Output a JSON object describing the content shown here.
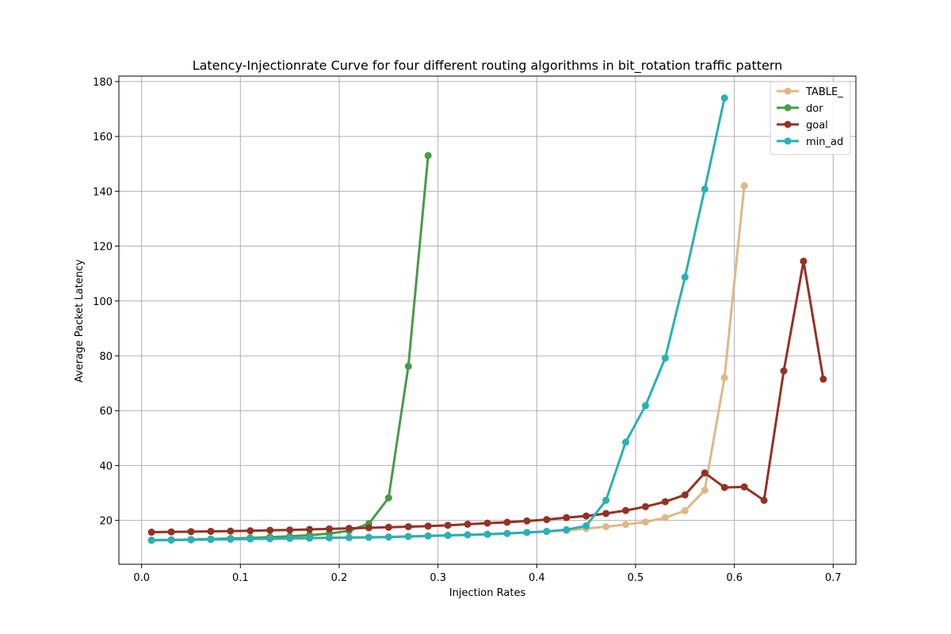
{
  "chart_data": {
    "type": "line",
    "title": "Latency-Injectionrate Curve for four different routing algorithms in bit_rotation traffic pattern",
    "xlabel": "Injection Rates",
    "ylabel": "Average Packet Latency",
    "xlim": [
      -0.023,
      0.723
    ],
    "ylim": [
      4,
      182
    ],
    "xticks": [
      0.0,
      0.1,
      0.2,
      0.3,
      0.4,
      0.5,
      0.6,
      0.7
    ],
    "xtick_labels": [
      "0.0",
      "0.1",
      "0.2",
      "0.3",
      "0.4",
      "0.5",
      "0.6",
      "0.7"
    ],
    "yticks": [
      20,
      40,
      60,
      80,
      100,
      120,
      140,
      160,
      180
    ],
    "ytick_labels": [
      "20",
      "40",
      "60",
      "80",
      "100",
      "120",
      "140",
      "160",
      "180"
    ],
    "grid": true,
    "legend_position": "top-right",
    "series": [
      {
        "name": "TABLE_",
        "color": "#deb887",
        "x": [
          0.01,
          0.03,
          0.05,
          0.07,
          0.09,
          0.11,
          0.13,
          0.15,
          0.17,
          0.19,
          0.21,
          0.23,
          0.25,
          0.27,
          0.29,
          0.31,
          0.33,
          0.35,
          0.37,
          0.39,
          0.41,
          0.43,
          0.45,
          0.47,
          0.49,
          0.51,
          0.53,
          0.55,
          0.57,
          0.59,
          0.61
        ],
        "y": [
          12.8,
          12.9,
          13.0,
          13.1,
          13.2,
          13.3,
          13.4,
          13.5,
          13.6,
          13.7,
          13.8,
          13.9,
          14.0,
          14.2,
          14.4,
          14.6,
          14.8,
          15.0,
          15.3,
          15.6,
          15.9,
          16.3,
          17.0,
          17.7,
          18.5,
          19.4,
          21.0,
          23.5,
          31.0,
          72.0,
          142.0
        ]
      },
      {
        "name": "dor",
        "color": "#4a9a4a",
        "x": [
          0.01,
          0.03,
          0.05,
          0.07,
          0.09,
          0.11,
          0.13,
          0.15,
          0.17,
          0.19,
          0.21,
          0.23,
          0.25,
          0.27,
          0.29
        ],
        "y": [
          12.8,
          12.9,
          13.0,
          13.2,
          13.4,
          13.6,
          13.9,
          14.2,
          14.6,
          15.2,
          16.2,
          18.8,
          28.2,
          76.2,
          153.0
        ]
      },
      {
        "name": "goal",
        "color": "#943126",
        "x": [
          0.01,
          0.03,
          0.05,
          0.07,
          0.09,
          0.11,
          0.13,
          0.15,
          0.17,
          0.19,
          0.21,
          0.23,
          0.25,
          0.27,
          0.29,
          0.31,
          0.33,
          0.35,
          0.37,
          0.39,
          0.41,
          0.43,
          0.45,
          0.47,
          0.49,
          0.51,
          0.53,
          0.55,
          0.57,
          0.59,
          0.61,
          0.63,
          0.65,
          0.67,
          0.69
        ],
        "y": [
          15.7,
          15.8,
          15.9,
          16.0,
          16.1,
          16.2,
          16.4,
          16.5,
          16.7,
          16.9,
          17.1,
          17.3,
          17.5,
          17.7,
          17.9,
          18.2,
          18.6,
          19.0,
          19.3,
          19.8,
          20.3,
          21.0,
          21.6,
          22.5,
          23.6,
          25.0,
          26.8,
          29.3,
          37.3,
          32.0,
          32.2,
          27.3,
          74.5,
          114.5,
          71.5
        ]
      },
      {
        "name": "min_ad",
        "color": "#2ab0b5",
        "x": [
          0.01,
          0.03,
          0.05,
          0.07,
          0.09,
          0.11,
          0.13,
          0.15,
          0.17,
          0.19,
          0.21,
          0.23,
          0.25,
          0.27,
          0.29,
          0.31,
          0.33,
          0.35,
          0.37,
          0.39,
          0.41,
          0.43,
          0.45,
          0.47,
          0.49,
          0.51,
          0.53,
          0.55,
          0.57,
          0.59
        ],
        "y": [
          12.7,
          12.8,
          12.9,
          13.0,
          13.1,
          13.2,
          13.3,
          13.4,
          13.5,
          13.6,
          13.7,
          13.8,
          13.9,
          14.1,
          14.3,
          14.5,
          14.7,
          14.9,
          15.2,
          15.6,
          16.0,
          16.6,
          18.0,
          27.3,
          48.5,
          61.8,
          79.2,
          108.7,
          140.8,
          174.0
        ]
      }
    ]
  }
}
